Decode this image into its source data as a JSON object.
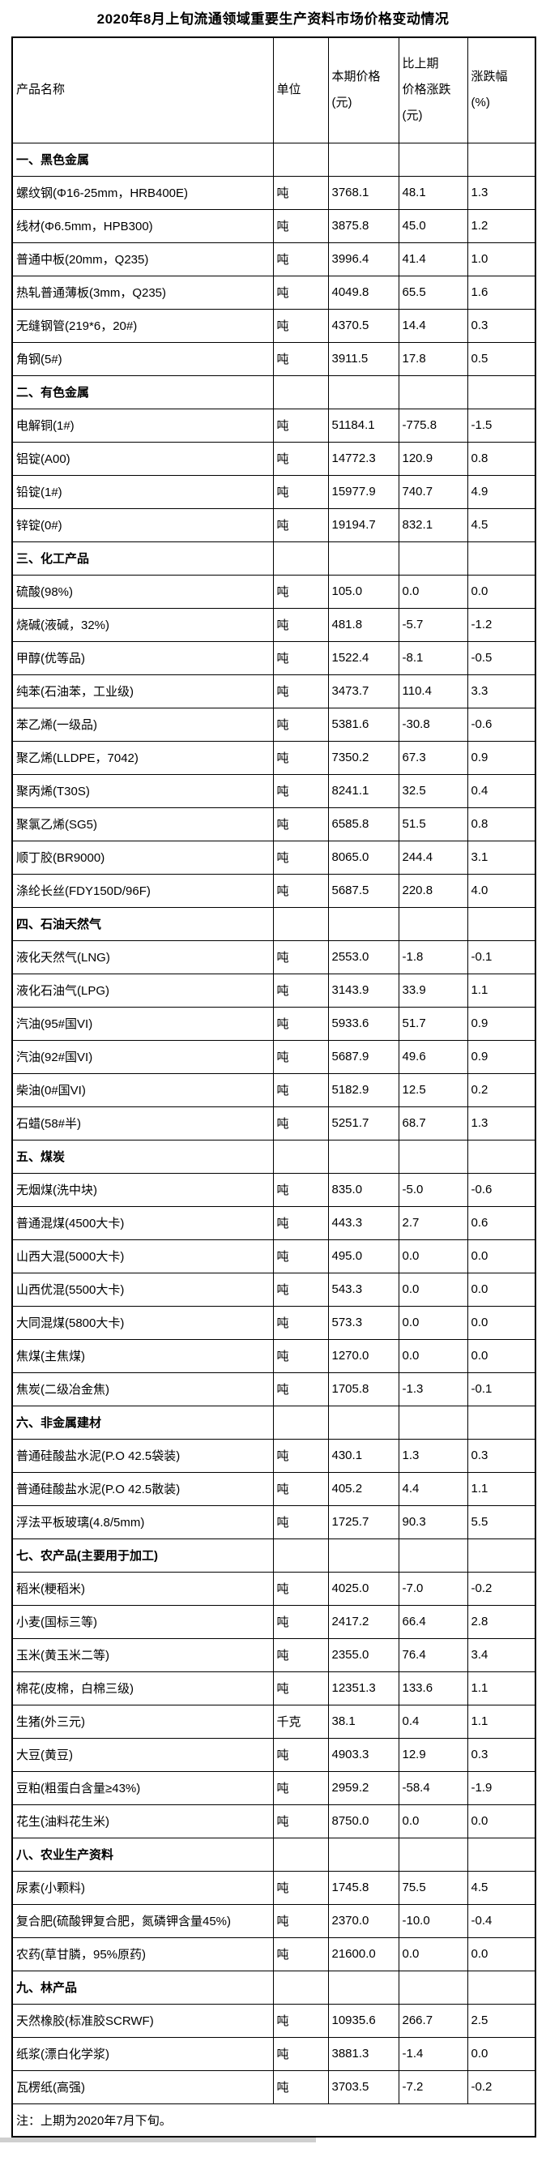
{
  "title": "2020年8月上旬流通领域重要生产资料市场价格变动情况",
  "note": "注：上期为2020年7月下旬。",
  "table": {
    "columns": [
      {
        "id": "product",
        "lines": [
          "产品名称"
        ]
      },
      {
        "id": "unit",
        "lines": [
          "单位"
        ]
      },
      {
        "id": "price",
        "lines": [
          "本期价格",
          "(元)"
        ]
      },
      {
        "id": "change",
        "lines": [
          "比上期",
          "价格涨跌",
          "(元)"
        ]
      },
      {
        "id": "pct",
        "lines": [
          "涨跌幅",
          "(%)"
        ]
      }
    ],
    "sections": [
      {
        "header": "一、黑色金属",
        "rows": [
          {
            "name": "螺纹钢(Φ16-25mm，HRB400E)",
            "unit": "吨",
            "price": "3768.1",
            "change": "48.1",
            "pct": "1.3"
          },
          {
            "name": "线材(Φ6.5mm，HPB300)",
            "unit": "吨",
            "price": "3875.8",
            "change": "45.0",
            "pct": "1.2"
          },
          {
            "name": "普通中板(20mm，Q235)",
            "unit": "吨",
            "price": "3996.4",
            "change": "41.4",
            "pct": "1.0"
          },
          {
            "name": "热轧普通薄板(3mm，Q235)",
            "unit": "吨",
            "price": "4049.8",
            "change": "65.5",
            "pct": "1.6"
          },
          {
            "name": "无缝钢管(219*6，20#)",
            "unit": "吨",
            "price": "4370.5",
            "change": "14.4",
            "pct": "0.3"
          },
          {
            "name": "角钢(5#)",
            "unit": "吨",
            "price": "3911.5",
            "change": "17.8",
            "pct": "0.5"
          }
        ]
      },
      {
        "header": "二、有色金属",
        "rows": [
          {
            "name": "电解铜(1#)",
            "unit": "吨",
            "price": "51184.1",
            "change": "-775.8",
            "pct": "-1.5"
          },
          {
            "name": "铝锭(A00)",
            "unit": "吨",
            "price": "14772.3",
            "change": "120.9",
            "pct": "0.8"
          },
          {
            "name": "铅锭(1#)",
            "unit": "吨",
            "price": "15977.9",
            "change": "740.7",
            "pct": "4.9"
          },
          {
            "name": "锌锭(0#)",
            "unit": "吨",
            "price": "19194.7",
            "change": "832.1",
            "pct": "4.5"
          }
        ]
      },
      {
        "header": "三、化工产品",
        "rows": [
          {
            "name": "硫酸(98%)",
            "unit": "吨",
            "price": "105.0",
            "change": "0.0",
            "pct": "0.0"
          },
          {
            "name": "烧碱(液碱，32%)",
            "unit": "吨",
            "price": "481.8",
            "change": "-5.7",
            "pct": "-1.2"
          },
          {
            "name": "甲醇(优等品)",
            "unit": "吨",
            "price": "1522.4",
            "change": "-8.1",
            "pct": "-0.5"
          },
          {
            "name": "纯苯(石油苯，工业级)",
            "unit": "吨",
            "price": "3473.7",
            "change": "110.4",
            "pct": "3.3"
          },
          {
            "name": "苯乙烯(一级品)",
            "unit": "吨",
            "price": "5381.6",
            "change": "-30.8",
            "pct": "-0.6"
          },
          {
            "name": "聚乙烯(LLDPE，7042)",
            "unit": "吨",
            "price": "7350.2",
            "change": "67.3",
            "pct": "0.9"
          },
          {
            "name": "聚丙烯(T30S)",
            "unit": "吨",
            "price": "8241.1",
            "change": "32.5",
            "pct": "0.4"
          },
          {
            "name": "聚氯乙烯(SG5)",
            "unit": "吨",
            "price": "6585.8",
            "change": "51.5",
            "pct": "0.8"
          },
          {
            "name": "顺丁胶(BR9000)",
            "unit": "吨",
            "price": "8065.0",
            "change": "244.4",
            "pct": "3.1"
          },
          {
            "name": "涤纶长丝(FDY150D/96F)",
            "unit": "吨",
            "price": "5687.5",
            "change": "220.8",
            "pct": "4.0"
          }
        ]
      },
      {
        "header": "四、石油天然气",
        "rows": [
          {
            "name": "液化天然气(LNG)",
            "unit": "吨",
            "price": "2553.0",
            "change": "-1.8",
            "pct": "-0.1"
          },
          {
            "name": "液化石油气(LPG)",
            "unit": "吨",
            "price": "3143.9",
            "change": "33.9",
            "pct": "1.1"
          },
          {
            "name": "汽油(95#国VI)",
            "unit": "吨",
            "price": "5933.6",
            "change": "51.7",
            "pct": "0.9"
          },
          {
            "name": "汽油(92#国VI)",
            "unit": "吨",
            "price": "5687.9",
            "change": "49.6",
            "pct": "0.9"
          },
          {
            "name": "柴油(0#国VI)",
            "unit": "吨",
            "price": "5182.9",
            "change": "12.5",
            "pct": "0.2"
          },
          {
            "name": "石蜡(58#半)",
            "unit": "吨",
            "price": "5251.7",
            "change": "68.7",
            "pct": "1.3"
          }
        ]
      },
      {
        "header": "五、煤炭",
        "rows": [
          {
            "name": "无烟煤(洗中块)",
            "unit": "吨",
            "price": "835.0",
            "change": "-5.0",
            "pct": "-0.6"
          },
          {
            "name": "普通混煤(4500大卡)",
            "unit": "吨",
            "price": "443.3",
            "change": "2.7",
            "pct": "0.6"
          },
          {
            "name": "山西大混(5000大卡)",
            "unit": "吨",
            "price": "495.0",
            "change": "0.0",
            "pct": "0.0"
          },
          {
            "name": "山西优混(5500大卡)",
            "unit": "吨",
            "price": "543.3",
            "change": "0.0",
            "pct": "0.0"
          },
          {
            "name": "大同混煤(5800大卡)",
            "unit": "吨",
            "price": "573.3",
            "change": "0.0",
            "pct": "0.0"
          },
          {
            "name": "焦煤(主焦煤)",
            "unit": "吨",
            "price": "1270.0",
            "change": "0.0",
            "pct": "0.0"
          },
          {
            "name": "焦炭(二级冶金焦)",
            "unit": "吨",
            "price": "1705.8",
            "change": "-1.3",
            "pct": "-0.1"
          }
        ]
      },
      {
        "header": "六、非金属建材",
        "rows": [
          {
            "name": "普通硅酸盐水泥(P.O 42.5袋装)",
            "unit": "吨",
            "price": "430.1",
            "change": "1.3",
            "pct": "0.3"
          },
          {
            "name": "普通硅酸盐水泥(P.O 42.5散装)",
            "unit": "吨",
            "price": "405.2",
            "change": "4.4",
            "pct": "1.1"
          },
          {
            "name": "浮法平板玻璃(4.8/5mm)",
            "unit": "吨",
            "price": "1725.7",
            "change": "90.3",
            "pct": "5.5"
          }
        ]
      },
      {
        "header": "七、农产品(主要用于加工)",
        "rows": [
          {
            "name": "稻米(粳稻米)",
            "unit": "吨",
            "price": "4025.0",
            "change": "-7.0",
            "pct": "-0.2"
          },
          {
            "name": "小麦(国标三等)",
            "unit": "吨",
            "price": "2417.2",
            "change": "66.4",
            "pct": "2.8"
          },
          {
            "name": "玉米(黄玉米二等)",
            "unit": "吨",
            "price": "2355.0",
            "change": "76.4",
            "pct": "3.4"
          },
          {
            "name": "棉花(皮棉，白棉三级)",
            "unit": "吨",
            "price": "12351.3",
            "change": "133.6",
            "pct": "1.1"
          },
          {
            "name": "生猪(外三元)",
            "unit": "千克",
            "price": "38.1",
            "change": "0.4",
            "pct": "1.1"
          },
          {
            "name": "大豆(黄豆)",
            "unit": "吨",
            "price": "4903.3",
            "change": "12.9",
            "pct": "0.3"
          },
          {
            "name": "豆粕(粗蛋白含量≥43%)",
            "unit": "吨",
            "price": "2959.2",
            "change": "-58.4",
            "pct": "-1.9"
          },
          {
            "name": "花生(油料花生米)",
            "unit": "吨",
            "price": "8750.0",
            "change": "0.0",
            "pct": "0.0"
          }
        ]
      },
      {
        "header": "八、农业生产资料",
        "rows": [
          {
            "name": "尿素(小颗料)",
            "unit": "吨",
            "price": "1745.8",
            "change": "75.5",
            "pct": "4.5"
          },
          {
            "name": "复合肥(硫酸钾复合肥，氮磷钾含量45%)",
            "unit": "吨",
            "price": "2370.0",
            "change": "-10.0",
            "pct": "-0.4"
          },
          {
            "name": "农药(草甘膦，95%原药)",
            "unit": "吨",
            "price": "21600.0",
            "change": "0.0",
            "pct": "0.0"
          }
        ]
      },
      {
        "header": "九、林产品",
        "rows": [
          {
            "name": "天然橡胶(标准胶SCRWF)",
            "unit": "吨",
            "price": "10935.6",
            "change": "266.7",
            "pct": "2.5"
          },
          {
            "name": "纸浆(漂白化学浆)",
            "unit": "吨",
            "price": "3881.3",
            "change": "-1.4",
            "pct": "0.0"
          },
          {
            "name": "瓦楞纸(高强)",
            "unit": "吨",
            "price": "3703.5",
            "change": "-7.2",
            "pct": "-0.2"
          }
        ]
      }
    ]
  }
}
